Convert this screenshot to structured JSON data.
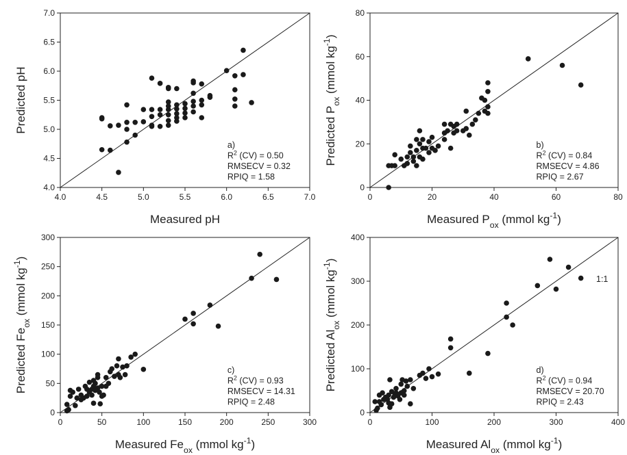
{
  "chart_data": [
    {
      "type": "scatter",
      "color": "#1a1a1a",
      "xlabel": [
        "Measured pH"
      ],
      "ylabel": [
        "Predicted pH"
      ],
      "annotation": [
        "a)",
        [
          "R",
          {
            "sup": "2"
          },
          " (CV) = 0.50"
        ],
        "RMSECV = 0.32",
        "RPIQ = 1.58"
      ],
      "xlim": [
        4,
        7
      ],
      "ylim": [
        4,
        7
      ],
      "xticks": [
        {
          "value": 4,
          "label": "4.0"
        },
        {
          "value": 4.5,
          "label": "4.5"
        },
        {
          "value": 5,
          "label": "5.0"
        },
        {
          "value": 5.5,
          "label": "5.5"
        },
        {
          "value": 6,
          "label": "6.0"
        },
        {
          "value": 6.5,
          "label": "6.5"
        },
        {
          "value": 7,
          "label": "7.0"
        }
      ],
      "yticks": [
        {
          "value": 4,
          "label": "4.0"
        },
        {
          "value": 4.5,
          "label": "4.5"
        },
        {
          "value": 5,
          "label": "5.0"
        },
        {
          "value": 5.5,
          "label": "5.5"
        },
        {
          "value": 6,
          "label": "6.0"
        },
        {
          "value": 6.5,
          "label": "6.5"
        },
        {
          "value": 7,
          "label": "7.0"
        }
      ],
      "x": [
        4.5,
        4.5,
        4.5,
        4.6,
        4.6,
        4.7,
        4.7,
        4.8,
        4.8,
        4.8,
        4.8,
        4.9,
        4.9,
        5.0,
        5.0,
        5.1,
        5.1,
        5.1,
        5.1,
        5.1,
        5.2,
        5.2,
        5.2,
        5.2,
        5.3,
        5.3,
        5.3,
        5.3,
        5.3,
        5.3,
        5.3,
        5.3,
        5.4,
        5.4,
        5.4,
        5.4,
        5.4,
        5.4,
        5.5,
        5.5,
        5.5,
        5.5,
        5.6,
        5.6,
        5.6,
        5.6,
        5.6,
        5.6,
        5.7,
        5.7,
        5.7,
        5.7,
        5.8,
        5.8,
        6.0,
        6.1,
        6.1,
        6.1,
        6.1,
        6.2,
        6.2,
        6.3
      ],
      "values": [
        5.2,
        5.18,
        4.65,
        5.06,
        4.64,
        5.07,
        4.26,
        5.42,
        5.12,
        5.0,
        4.78,
        5.12,
        4.9,
        5.34,
        5.13,
        5.88,
        5.34,
        5.22,
        5.07,
        5.05,
        5.79,
        5.34,
        5.25,
        5.05,
        5.72,
        5.7,
        5.47,
        5.4,
        5.34,
        5.25,
        5.15,
        5.07,
        5.7,
        5.42,
        5.35,
        5.27,
        5.2,
        5.14,
        5.44,
        5.36,
        5.28,
        5.2,
        5.83,
        5.8,
        5.62,
        5.48,
        5.4,
        5.3,
        5.78,
        5.5,
        5.42,
        5.2,
        5.58,
        5.55,
        6.01,
        5.92,
        5.68,
        5.52,
        5.4,
        6.36,
        5.94,
        5.46
      ]
    },
    {
      "type": "scatter",
      "color": "#1a1a1a",
      "xlabel": [
        "Measured P",
        {
          "sub": "ox"
        },
        " (mmol kg",
        {
          "sup": "-1"
        },
        ")"
      ],
      "ylabel": [
        "Predicted P",
        {
          "sub": "ox"
        },
        " (mmol kg",
        {
          "sup": "-1"
        },
        ")"
      ],
      "annotation": [
        "b)",
        [
          "R",
          {
            "sup": "2"
          },
          " (CV) = 0.84"
        ],
        "RMSECV = 4.86",
        "RPIQ = 2.67"
      ],
      "xlim": [
        0,
        80
      ],
      "ylim": [
        0,
        80
      ],
      "xticks": [
        0,
        20,
        40,
        60,
        80
      ],
      "yticks": [
        0,
        20,
        40,
        60,
        80
      ],
      "x": [
        6,
        6,
        7,
        8,
        8,
        10,
        11,
        12,
        12,
        13,
        13,
        14,
        14,
        15,
        15,
        15,
        16,
        16,
        16,
        17,
        17,
        17,
        18,
        19,
        19,
        20,
        20,
        21,
        22,
        24,
        24,
        24,
        25,
        26,
        26,
        27,
        27,
        28,
        28,
        30,
        31,
        31,
        32,
        33,
        34,
        35,
        36,
        37,
        37,
        38,
        38,
        38,
        38,
        51,
        62,
        68
      ],
      "values": [
        0,
        10,
        10,
        10,
        15,
        13,
        10,
        11,
        14,
        16,
        19,
        12,
        14,
        10,
        17,
        22,
        14,
        20,
        26,
        13,
        18,
        22,
        18,
        16,
        21,
        18,
        23,
        17,
        19,
        22,
        25,
        29,
        26,
        18,
        29,
        28,
        25,
        26,
        29,
        26,
        27,
        35,
        24,
        29,
        31,
        34,
        41,
        40,
        35,
        37,
        44,
        48,
        34,
        59,
        56,
        47
      ]
    },
    {
      "type": "scatter",
      "color": "#1a1a1a",
      "xlabel": [
        "Measured Fe",
        {
          "sub": "ox"
        },
        " (mmol kg",
        {
          "sup": "-1"
        },
        ")"
      ],
      "ylabel": [
        "Predicted Fe",
        {
          "sub": "ox"
        },
        " (mmol kg",
        {
          "sup": "-1"
        },
        ")"
      ],
      "annotation": [
        "c)",
        [
          "R",
          {
            "sup": "2"
          },
          " (CV) = 0.93"
        ],
        "RMSECV = 14.31",
        "RPIQ = 2.48"
      ],
      "xlim": [
        0,
        300
      ],
      "ylim": [
        0,
        300
      ],
      "xticks": [
        0,
        50,
        100,
        150,
        200,
        250,
        300
      ],
      "yticks": [
        0,
        50,
        100,
        150,
        200,
        250,
        300
      ],
      "x": [
        8,
        8,
        10,
        12,
        12,
        15,
        18,
        20,
        22,
        25,
        25,
        28,
        30,
        32,
        32,
        35,
        35,
        38,
        38,
        40,
        40,
        40,
        42,
        42,
        45,
        45,
        45,
        47,
        48,
        50,
        50,
        52,
        55,
        55,
        58,
        60,
        62,
        65,
        68,
        70,
        70,
        72,
        75,
        78,
        80,
        85,
        90,
        100,
        150,
        160,
        160,
        180,
        190,
        230,
        240,
        260
      ],
      "values": [
        3,
        14,
        5,
        28,
        38,
        35,
        12,
        25,
        40,
        30,
        22,
        25,
        45,
        40,
        28,
        35,
        52,
        40,
        30,
        55,
        45,
        16,
        50,
        38,
        65,
        60,
        42,
        35,
        15,
        28,
        45,
        30,
        60,
        45,
        50,
        70,
        75,
        62,
        80,
        92,
        65,
        60,
        78,
        65,
        80,
        95,
        100,
        74,
        160,
        170,
        152,
        184,
        148,
        230,
        271,
        228
      ]
    },
    {
      "type": "scatter",
      "color": "#1a1a1a",
      "xlabel": [
        "Measured Al",
        {
          "sub": "ox"
        },
        " (mmol kg",
        {
          "sup": "-1"
        },
        ")"
      ],
      "ylabel": [
        "Predicted Al",
        {
          "sub": "ox"
        },
        " (mmol kg",
        {
          "sup": "-1"
        },
        ")"
      ],
      "annotation": [
        "d)",
        [
          "R",
          {
            "sup": "2"
          },
          " (CV) = 0.94"
        ],
        "RMSECV = 20.70",
        "RPIQ = 2.43"
      ],
      "line_label": "1:1",
      "xlim": [
        0,
        400
      ],
      "ylim": [
        0,
        400
      ],
      "xticks": [
        0,
        100,
        200,
        300,
        400
      ],
      "yticks": [
        0,
        100,
        200,
        300,
        400
      ],
      "x": [
        8,
        10,
        12,
        15,
        15,
        18,
        20,
        22,
        25,
        28,
        30,
        30,
        32,
        32,
        35,
        35,
        38,
        40,
        42,
        42,
        45,
        48,
        50,
        50,
        52,
        55,
        55,
        58,
        60,
        65,
        65,
        70,
        80,
        85,
        90,
        95,
        100,
        110,
        130,
        130,
        160,
        190,
        220,
        220,
        230,
        270,
        290,
        300,
        320,
        340
      ],
      "values": [
        25,
        5,
        10,
        40,
        25,
        18,
        45,
        30,
        35,
        30,
        22,
        40,
        75,
        12,
        20,
        48,
        35,
        40,
        55,
        45,
        38,
        30,
        65,
        45,
        75,
        50,
        40,
        72,
        60,
        75,
        20,
        55,
        85,
        90,
        78,
        100,
        82,
        88,
        168,
        148,
        90,
        135,
        250,
        218,
        200,
        290,
        350,
        282,
        332,
        307
      ]
    }
  ]
}
